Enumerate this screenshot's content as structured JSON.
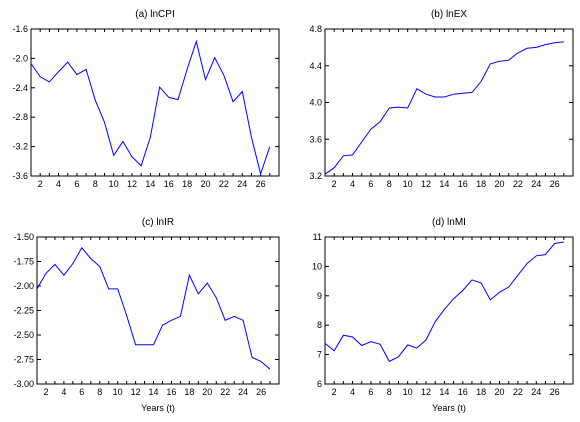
{
  "chart_data": [
    {
      "type": "line",
      "title": "(a) lnCPI",
      "xlabel": "",
      "ylabel": "",
      "xlim": [
        1,
        28
      ],
      "ylim": [
        -3.6,
        -1.6
      ],
      "xticks": [
        2,
        4,
        6,
        8,
        10,
        12,
        14,
        16,
        18,
        20,
        22,
        24,
        26
      ],
      "yticks": [
        -1.6,
        -2.0,
        -2.4,
        -2.8,
        -3.2,
        -3.6
      ],
      "ytick_labels": [
        "-1.6",
        "-2.0",
        "-2.4",
        "-2.8",
        "-3.2",
        "-3.6"
      ],
      "x": [
        1,
        2,
        3,
        4,
        5,
        6,
        7,
        8,
        9,
        10,
        11,
        12,
        13,
        14,
        15,
        16,
        17,
        18,
        19,
        20,
        21,
        22,
        23,
        24,
        25,
        26,
        27
      ],
      "values": [
        -2.07,
        -2.25,
        -2.32,
        -2.18,
        -2.05,
        -2.22,
        -2.15,
        -2.57,
        -2.87,
        -3.32,
        -3.13,
        -3.34,
        -3.46,
        -3.07,
        -2.39,
        -2.53,
        -2.56,
        -2.15,
        -1.77,
        -2.29,
        -1.99,
        -2.23,
        -2.59,
        -2.45,
        -3.07,
        -3.57,
        -3.2
      ]
    },
    {
      "type": "line",
      "title": "(b) lnEX",
      "xlabel": "",
      "ylabel": "",
      "xlim": [
        1,
        28
      ],
      "ylim": [
        3.2,
        4.8
      ],
      "xticks": [
        2,
        4,
        6,
        8,
        10,
        12,
        14,
        16,
        18,
        20,
        22,
        24,
        26
      ],
      "yticks": [
        3.2,
        3.6,
        4.0,
        4.4,
        4.8
      ],
      "ytick_labels": [
        "3.2",
        "3.6",
        "4.0",
        "4.4",
        "4.8"
      ],
      "x": [
        1,
        2,
        3,
        4,
        5,
        6,
        7,
        8,
        9,
        10,
        11,
        12,
        13,
        14,
        15,
        16,
        17,
        18,
        19,
        20,
        21,
        22,
        23,
        24,
        25,
        26,
        27
      ],
      "values": [
        3.22,
        3.29,
        3.42,
        3.43,
        3.57,
        3.71,
        3.79,
        3.94,
        3.95,
        3.94,
        4.15,
        4.09,
        4.06,
        4.06,
        4.09,
        4.1,
        4.11,
        4.23,
        4.42,
        4.45,
        4.46,
        4.54,
        4.59,
        4.6,
        4.63,
        4.65,
        4.66
      ]
    },
    {
      "type": "line",
      "title": "(c) lnIR",
      "xlabel": "",
      "ylabel": "",
      "xlim": [
        1,
        28
      ],
      "ylim": [
        -3.0,
        -1.5
      ],
      "xticks": [
        2,
        4,
        6,
        8,
        10,
        12,
        14,
        16,
        18,
        20,
        22,
        24,
        26
      ],
      "yticks": [
        -1.5,
        -1.75,
        -2.0,
        -2.25,
        -2.5,
        -2.75,
        -3.0
      ],
      "ytick_labels": [
        "-1.50",
        "-1.75",
        "-2.00",
        "-2.25",
        "-2.50",
        "-2.75",
        "-3.00"
      ],
      "x": [
        1,
        2,
        3,
        4,
        5,
        6,
        7,
        8,
        9,
        10,
        11,
        12,
        13,
        14,
        15,
        16,
        17,
        18,
        19,
        20,
        21,
        22,
        23,
        24,
        25,
        26,
        27
      ],
      "values": [
        -2.03,
        -1.87,
        -1.78,
        -1.89,
        -1.77,
        -1.61,
        -1.72,
        -1.8,
        -2.03,
        -2.03,
        -2.3,
        -2.6,
        -2.6,
        -2.6,
        -2.4,
        -2.35,
        -2.31,
        -1.89,
        -2.08,
        -1.97,
        -2.12,
        -2.35,
        -2.31,
        -2.35,
        -2.73,
        -2.77,
        -2.85
      ]
    },
    {
      "type": "line",
      "title": "(d) lnMI",
      "xlabel": "",
      "ylabel": "",
      "xlim": [
        1,
        28
      ],
      "ylim": [
        6,
        11
      ],
      "xticks": [
        2,
        4,
        6,
        8,
        10,
        12,
        14,
        16,
        18,
        20,
        22,
        24,
        26
      ],
      "yticks": [
        6,
        7,
        8,
        9,
        10,
        11
      ],
      "ytick_labels": [
        "6",
        "7",
        "8",
        "9",
        "10",
        "11"
      ],
      "x": [
        1,
        2,
        3,
        4,
        5,
        6,
        7,
        8,
        9,
        10,
        11,
        12,
        13,
        14,
        15,
        16,
        17,
        18,
        19,
        20,
        21,
        22,
        23,
        24,
        25,
        26,
        27
      ],
      "values": [
        7.38,
        7.13,
        7.66,
        7.6,
        7.31,
        7.44,
        7.35,
        6.77,
        6.93,
        7.33,
        7.22,
        7.5,
        8.12,
        8.54,
        8.9,
        9.18,
        9.54,
        9.44,
        8.86,
        9.12,
        9.3,
        9.7,
        10.1,
        10.36,
        10.4,
        10.78,
        10.83
      ]
    }
  ],
  "shared": {
    "xlabel_bottom": "Years (t)",
    "line_color": "#0000ff"
  }
}
